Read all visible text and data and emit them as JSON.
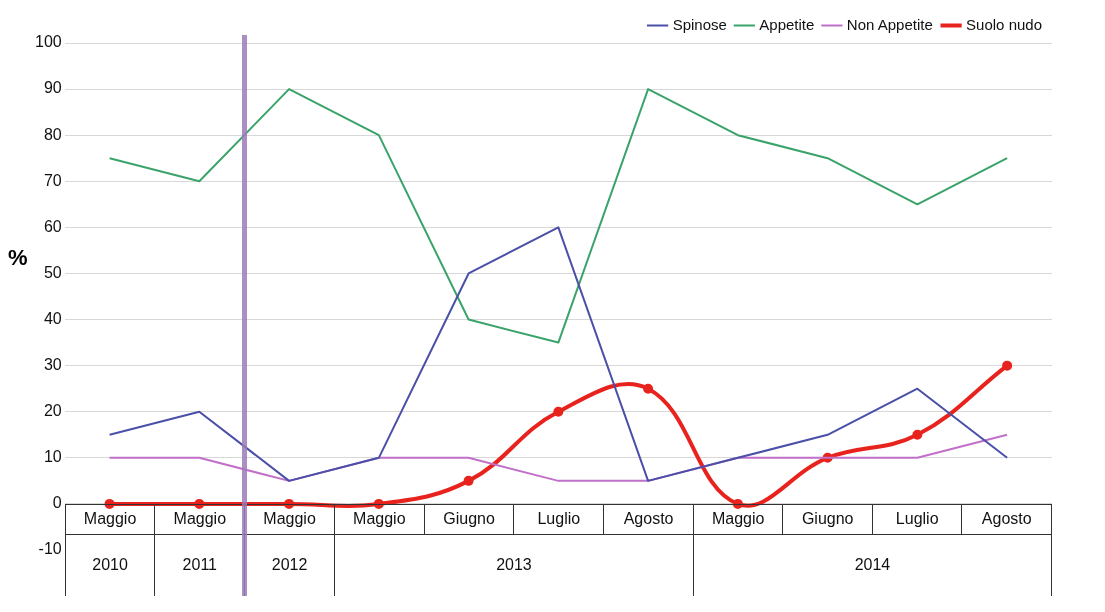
{
  "chart_data": {
    "type": "line",
    "ylabel": "%",
    "categories": [
      "Maggio",
      "Maggio",
      "Maggio",
      "Maggio",
      "Giugno",
      "Luglio",
      "Agosto",
      "Maggio",
      "Giugno",
      "Luglio",
      "Agosto"
    ],
    "annotations": [
      "2010",
      "2011",
      "2012",
      "2013",
      "2014"
    ],
    "series": [
      {
        "name": "Spinose",
        "color": "#4a4fa8",
        "values": [
          15,
          20,
          5,
          10,
          50,
          60,
          5,
          10,
          15,
          25,
          10
        ],
        "marker": "none"
      },
      {
        "name": "Appetite",
        "color": "#3aa36a",
        "values": [
          75,
          70,
          90,
          80,
          40,
          35,
          90,
          80,
          75,
          65,
          75
        ],
        "marker": "none"
      },
      {
        "name": "Non Appetite",
        "color": "#c070c8",
        "values": [
          10,
          10,
          5,
          10,
          10,
          5,
          5,
          10,
          10,
          10,
          15
        ],
        "marker": "none"
      },
      {
        "name": "Suolo nudo",
        "color": "#e8231e",
        "values": [
          0,
          0,
          0,
          0,
          5,
          20,
          25,
          0,
          10,
          15,
          30
        ],
        "marker": "circle"
      }
    ],
    "ylim": [
      -10,
      100
    ],
    "yticks": [
      -10,
      0,
      10,
      20,
      30,
      40,
      50,
      60,
      70,
      80,
      90,
      100
    ],
    "grid": "y",
    "legend": "top right"
  }
}
